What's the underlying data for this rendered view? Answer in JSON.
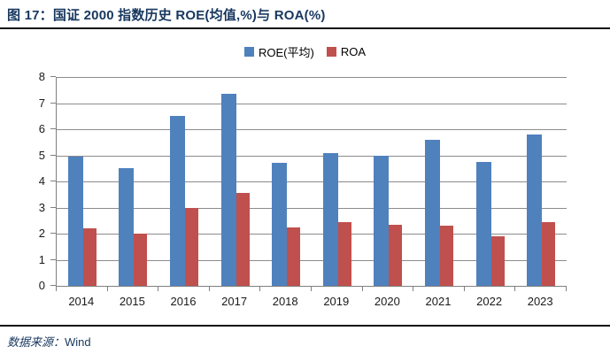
{
  "title": "图 17：国证 2000 指数历史 ROE(均值,%)与 ROA(%)",
  "footer": {
    "source_label": "数据来源：",
    "source_value": "Wind"
  },
  "colors": {
    "roe_blue": "#4F81BD",
    "roa_red": "#C0504D",
    "gridline_gray": "#8C8C8C",
    "axis_gray": "#808080",
    "title_navy": "#17375E"
  },
  "chart_data": {
    "type": "bar",
    "title": "国证 2000 指数历史 ROE(均值,%)与 ROA(%)",
    "categories": [
      "2014",
      "2015",
      "2016",
      "2017",
      "2018",
      "2019",
      "2020",
      "2021",
      "2022",
      "2023"
    ],
    "series": [
      {
        "name": "ROE(平均)",
        "color": "#4F81BD",
        "values": [
          4.95,
          4.5,
          6.5,
          7.35,
          4.7,
          5.1,
          5.0,
          5.6,
          4.75,
          5.8
        ]
      },
      {
        "name": "ROA",
        "color": "#C0504D",
        "values": [
          2.2,
          2.0,
          3.0,
          3.55,
          2.25,
          2.45,
          2.35,
          2.3,
          1.9,
          2.45
        ]
      }
    ],
    "xlabel": "",
    "ylabel": "",
    "ylim": [
      0,
      8
    ],
    "ytick_step": 1,
    "grid": true,
    "legend_position": "top-center"
  }
}
